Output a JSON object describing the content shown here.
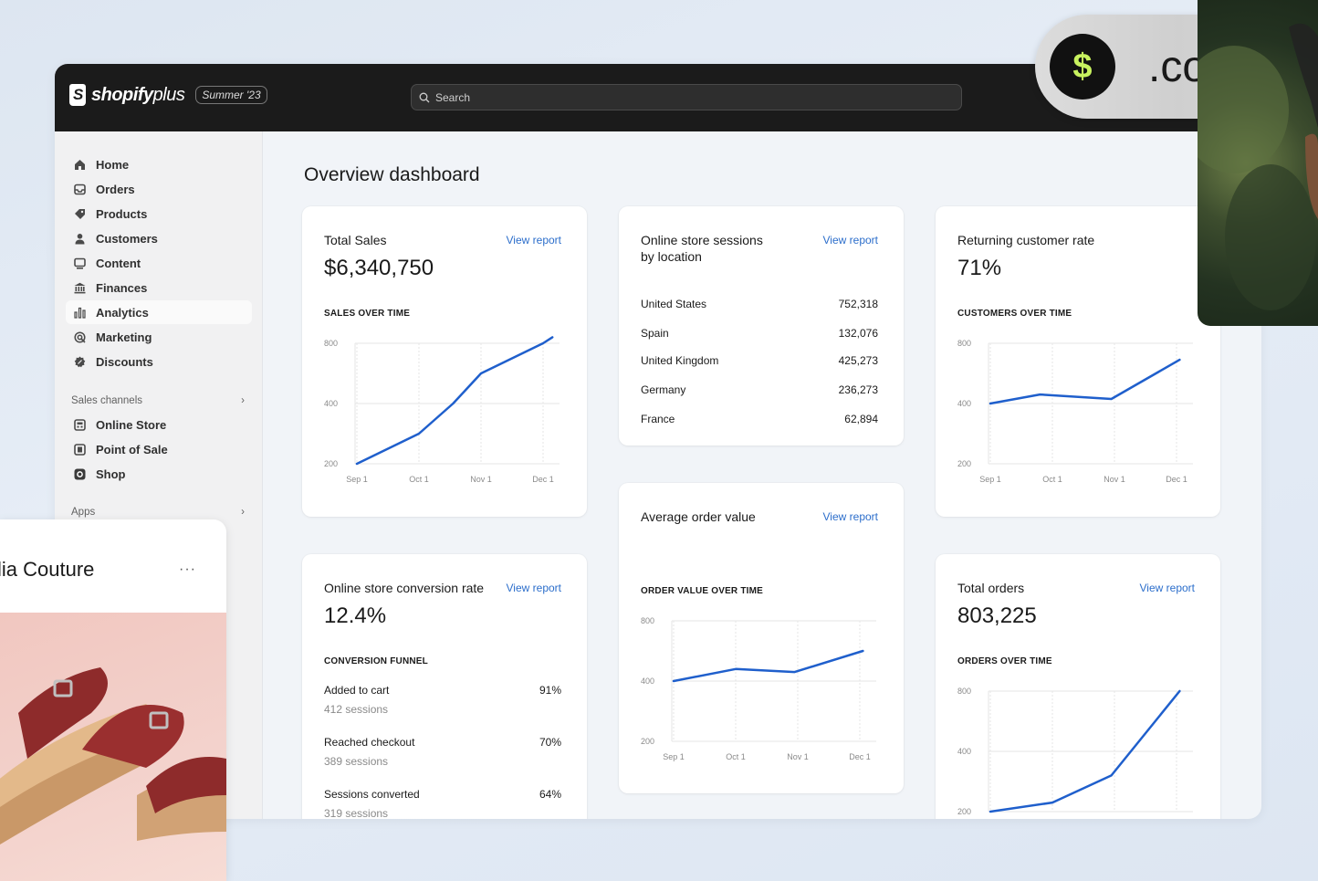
{
  "topbar": {
    "brand": "shopify",
    "brand_suffix": "plus",
    "edition": "Summer '23",
    "search_placeholder": "Search"
  },
  "sidebar": {
    "items": [
      {
        "label": "Home",
        "icon": "home-icon"
      },
      {
        "label": "Orders",
        "icon": "inbox-icon"
      },
      {
        "label": "Products",
        "icon": "tag-icon"
      },
      {
        "label": "Customers",
        "icon": "person-icon"
      },
      {
        "label": "Content",
        "icon": "content-icon"
      },
      {
        "label": "Finances",
        "icon": "bank-icon"
      },
      {
        "label": "Analytics",
        "icon": "bar-chart-icon",
        "active": true
      },
      {
        "label": "Marketing",
        "icon": "target-icon"
      },
      {
        "label": "Discounts",
        "icon": "discount-icon"
      }
    ],
    "sales_channels": {
      "heading": "Sales channels",
      "items": [
        {
          "label": "Online Store",
          "icon": "store-icon"
        },
        {
          "label": "Point of Sale",
          "icon": "pos-icon"
        },
        {
          "label": "Shop",
          "icon": "shop-icon"
        }
      ]
    },
    "apps_heading": "Apps"
  },
  "main": {
    "title": "Overview dashboard",
    "view_report": "View report",
    "total_sales": {
      "title": "Total Sales",
      "value": "$6,340,750",
      "chart_heading": "SALES OVER TIME"
    },
    "sessions_by_location": {
      "title_line1": "Online store sessions",
      "title_line2": "by location",
      "rows": [
        {
          "country": "United States",
          "value": "752,318"
        },
        {
          "country": "Spain",
          "value": "132,076"
        },
        {
          "country": "United Kingdom",
          "value": "425,273"
        },
        {
          "country": "Germany",
          "value": "236,273"
        },
        {
          "country": "France",
          "value": "62,894"
        }
      ]
    },
    "returning_rate": {
      "title": "Returning customer rate",
      "value": "71%",
      "chart_heading": "CUSTOMERS OVER TIME"
    },
    "conversion_rate": {
      "title": "Online store conversion rate",
      "value": "12.4%",
      "funnel_heading": "CONVERSION FUNNEL",
      "steps": [
        {
          "label": "Added to cart",
          "percent": "91%",
          "sessions": "412 sessions"
        },
        {
          "label": "Reached checkout",
          "percent": "70%",
          "sessions": "389 sessions"
        },
        {
          "label": "Sessions converted",
          "percent": "64%",
          "sessions": "319 sessions"
        }
      ]
    },
    "avg_order_value": {
      "title": "Average order value",
      "chart_heading": "ORDER VALUE OVER TIME"
    },
    "total_orders": {
      "title": "Total orders",
      "value": "803,225",
      "chart_heading": "ORDERS OVER TIME"
    }
  },
  "chart_data": [
    {
      "type": "line",
      "title": "SALES OVER TIME",
      "categories": [
        "Sep 1",
        "Oct 1",
        "Nov 1",
        "Dec 1"
      ],
      "yticks": [
        800,
        400,
        200
      ],
      "x": [
        0,
        1,
        1.55,
        2,
        3,
        3.15
      ],
      "y": [
        200,
        300,
        400,
        600,
        800,
        840
      ]
    },
    {
      "type": "line",
      "title": "CUSTOMERS OVER TIME",
      "categories": [
        "Sep 1",
        "Oct 1",
        "Nov 1",
        "Dec 1"
      ],
      "yticks": [
        800,
        400,
        200
      ],
      "x": [
        0,
        0.8,
        1.95,
        3.05
      ],
      "y": [
        400,
        460,
        430,
        690
      ]
    },
    {
      "type": "line",
      "title": "ORDER VALUE OVER TIME",
      "categories": [
        "Sep 1",
        "Oct 1",
        "Nov 1",
        "Dec 1"
      ],
      "yticks": [
        800,
        400,
        200
      ],
      "x": [
        0,
        1,
        1.95,
        3.05
      ],
      "y": [
        400,
        480,
        460,
        600
      ]
    },
    {
      "type": "line",
      "title": "ORDERS OVER TIME",
      "categories": [
        "Sep 1",
        "Oct 1",
        "Nov 1",
        "Dec 1"
      ],
      "yticks": [
        800,
        400,
        200
      ],
      "x": [
        0,
        1,
        1.95,
        3.05
      ],
      "y": [
        200,
        230,
        320,
        800
      ]
    }
  ],
  "overlay": {
    "dollar_symbol": "$",
    "domain_suffix": ".com",
    "accent_color": "#c8f25f",
    "store_name": "lia Couture",
    "menu_dots": "···"
  },
  "colors": {
    "line": "#1f5fcc",
    "link": "#2c6ecb",
    "topbar": "#1b1b1b"
  }
}
